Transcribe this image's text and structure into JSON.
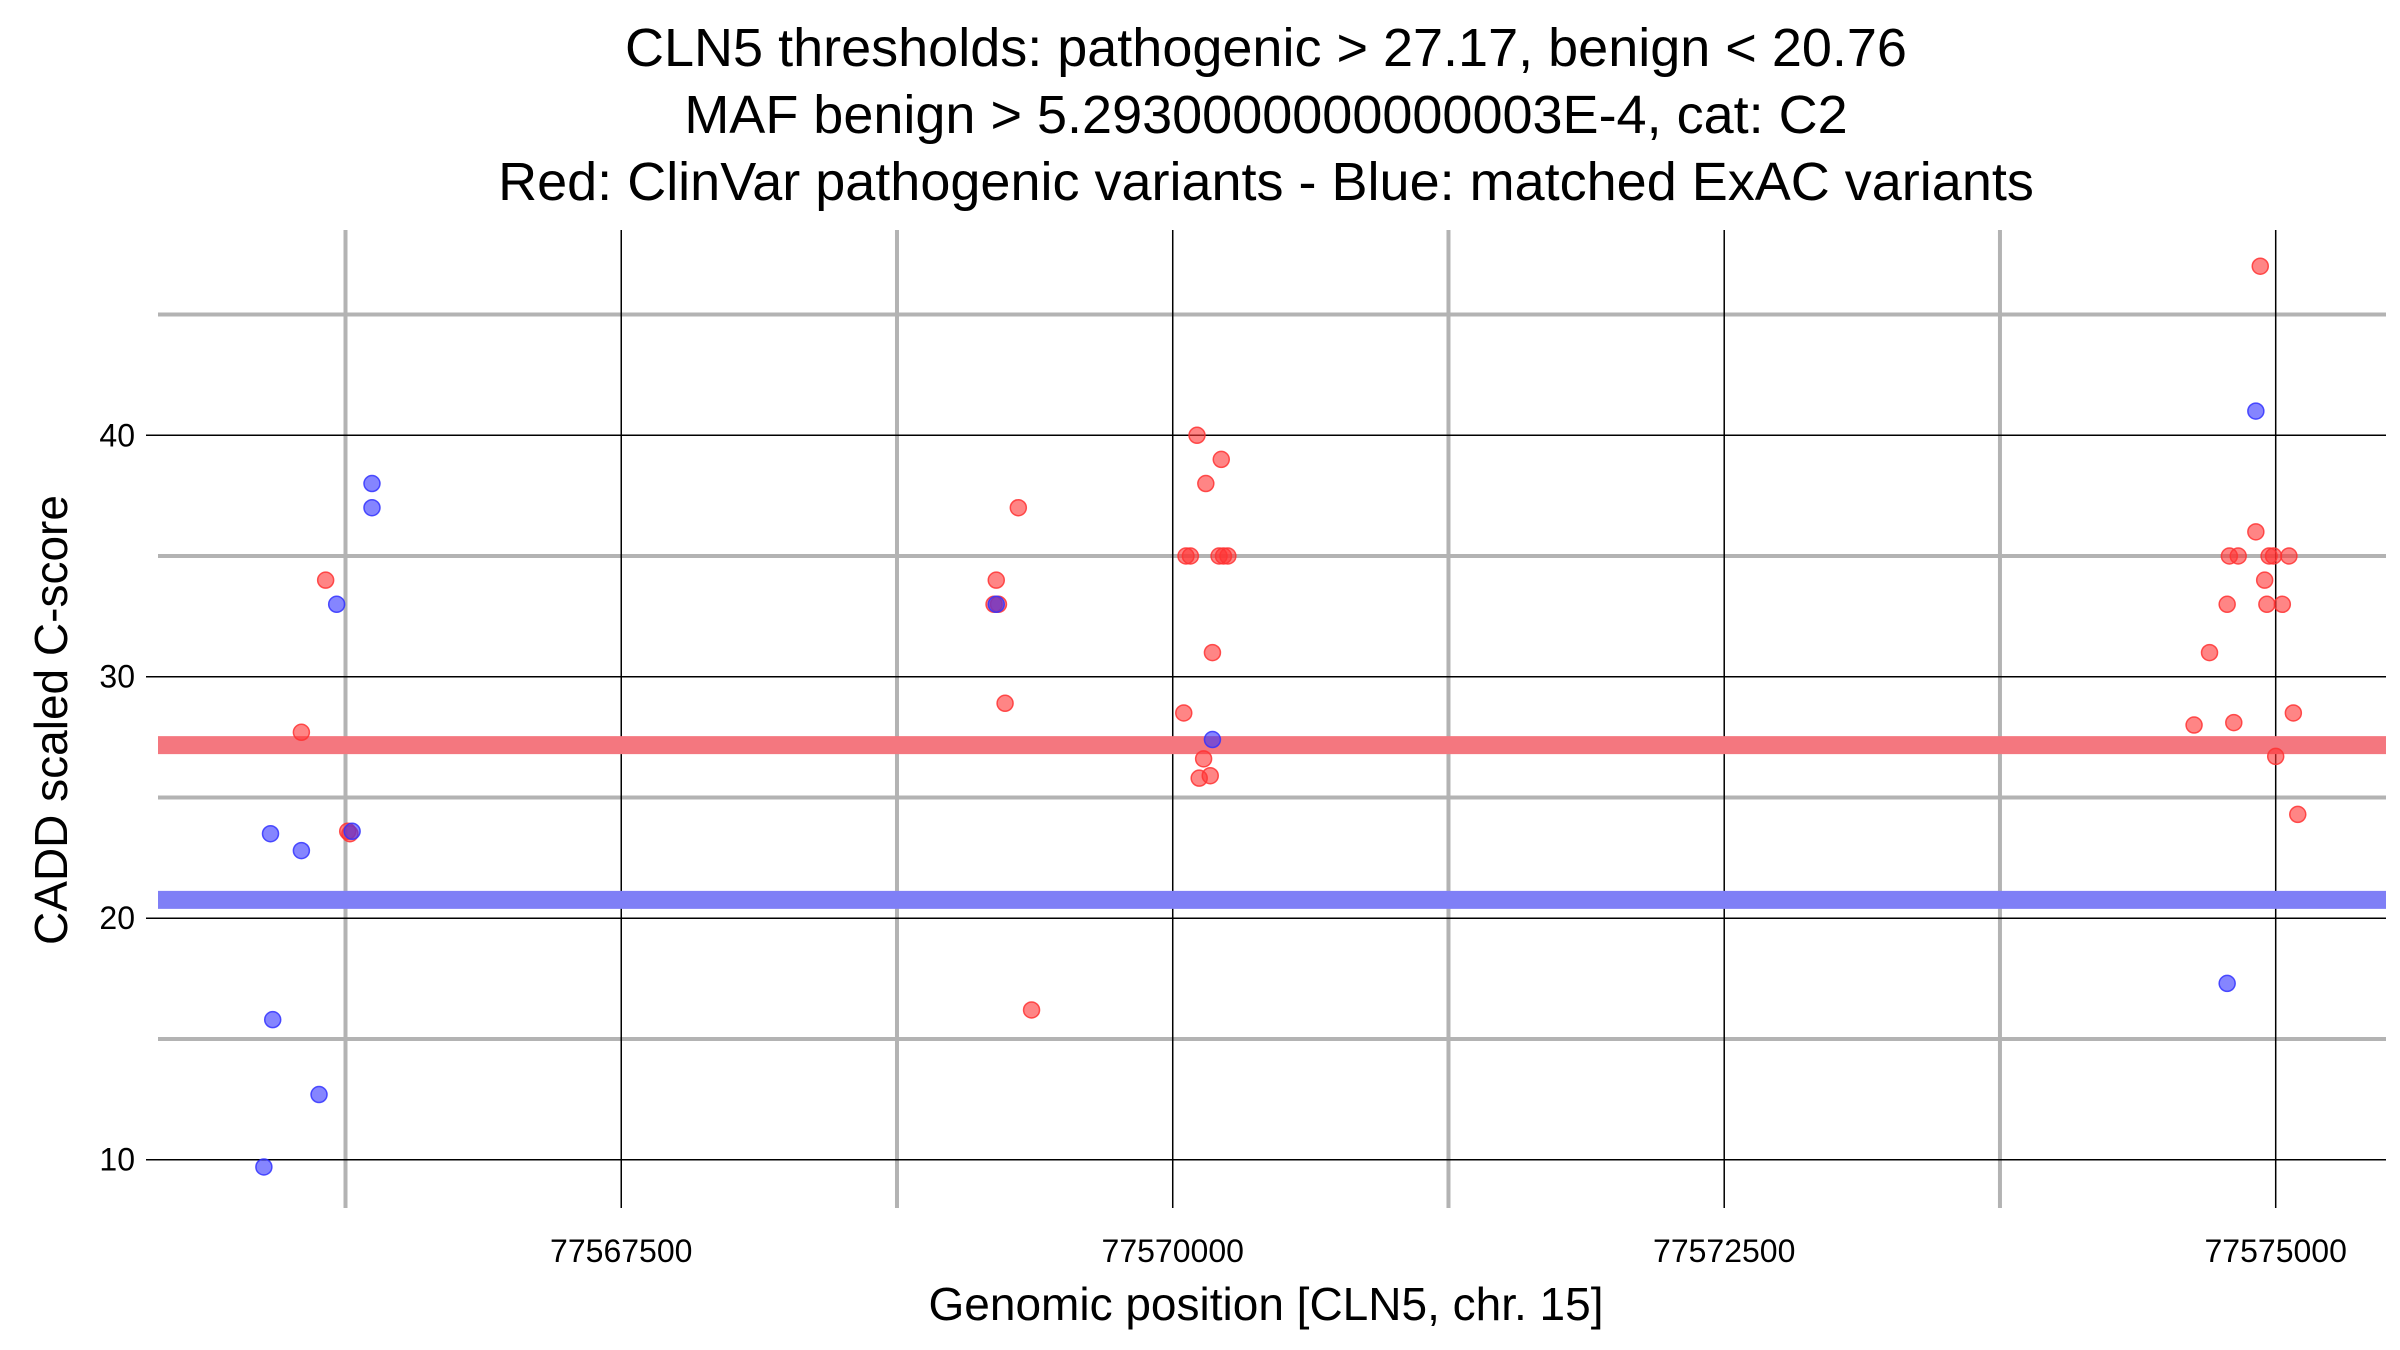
{
  "chart_data": {
    "type": "scatter",
    "title": [
      "CLN5 thresholds: pathogenic > 27.17, benign < 20.76",
      "MAF benign > 5.2930000000000003E-4, cat: C2",
      "Red: ClinVar pathogenic variants - Blue: matched ExAC variants"
    ],
    "xlabel": "Genomic position [CLN5, chr. 15]",
    "ylabel": "CADD scaled C-score",
    "xlim": [
      77565400,
      77575500
    ],
    "ylim": [
      8,
      48.5
    ],
    "x_ticks": [
      {
        "value": 77567500,
        "label": "77567500"
      },
      {
        "value": 77570000,
        "label": "77570000"
      },
      {
        "value": 77572500,
        "label": "77572500"
      },
      {
        "value": 77575000,
        "label": "77575000"
      }
    ],
    "y_ticks": [
      {
        "value": 10,
        "label": "10"
      },
      {
        "value": 20,
        "label": "20"
      },
      {
        "value": 30,
        "label": "30"
      },
      {
        "value": 40,
        "label": "40"
      }
    ],
    "x_minor_grid": [
      77566250,
      77568750,
      77571250,
      77573750
    ],
    "y_minor_grid": [
      15,
      25,
      35,
      45
    ],
    "thresholds": [
      {
        "name": "pathogenic",
        "value": 27.17,
        "color": "#f4777f"
      },
      {
        "name": "benign",
        "value": 20.76,
        "color": "#7f7ff6"
      }
    ],
    "series": [
      {
        "name": "ClinVar pathogenic variants",
        "color": "#ff3333",
        "points": [
          [
            77566050,
            27.7
          ],
          [
            77566160,
            34.0
          ],
          [
            77566260,
            23.6
          ],
          [
            77566270,
            23.5
          ],
          [
            77569190,
            33.0
          ],
          [
            77569200,
            34.0
          ],
          [
            77569210,
            33.0
          ],
          [
            77569240,
            28.9
          ],
          [
            77569300,
            37.0
          ],
          [
            77569360,
            16.2
          ],
          [
            77570050,
            28.5
          ],
          [
            77570060,
            35.0
          ],
          [
            77570080,
            35.0
          ],
          [
            77570110,
            40.0
          ],
          [
            77570120,
            25.8
          ],
          [
            77570140,
            26.6
          ],
          [
            77570150,
            38.0
          ],
          [
            77570170,
            25.9
          ],
          [
            77570180,
            31.0
          ],
          [
            77570210,
            35.0
          ],
          [
            77570220,
            39.0
          ],
          [
            77570230,
            35.0
          ],
          [
            77570250,
            35.0
          ],
          [
            77574630,
            28.0
          ],
          [
            77574700,
            31.0
          ],
          [
            77574780,
            33.0
          ],
          [
            77574790,
            35.0
          ],
          [
            77574810,
            28.1
          ],
          [
            77574830,
            35.0
          ],
          [
            77574910,
            36.0
          ],
          [
            77574930,
            47.0
          ],
          [
            77574950,
            34.0
          ],
          [
            77574960,
            33.0
          ],
          [
            77574970,
            35.0
          ],
          [
            77574990,
            35.0
          ],
          [
            77575000,
            26.7
          ],
          [
            77575030,
            33.0
          ],
          [
            77575060,
            35.0
          ],
          [
            77575080,
            28.5
          ],
          [
            77575100,
            24.3
          ]
        ]
      },
      {
        "name": "matched ExAC variants",
        "color": "#3333ff",
        "points": [
          [
            77565880,
            9.7
          ],
          [
            77565910,
            23.5
          ],
          [
            77565920,
            15.8
          ],
          [
            77566050,
            22.8
          ],
          [
            77566130,
            12.7
          ],
          [
            77566210,
            33.0
          ],
          [
            77566280,
            23.6
          ],
          [
            77566370,
            37.0
          ],
          [
            77566370,
            38.0
          ],
          [
            77569200,
            33.0
          ],
          [
            77570180,
            27.4
          ],
          [
            77574780,
            17.3
          ],
          [
            77574910,
            41.0
          ]
        ]
      }
    ]
  }
}
